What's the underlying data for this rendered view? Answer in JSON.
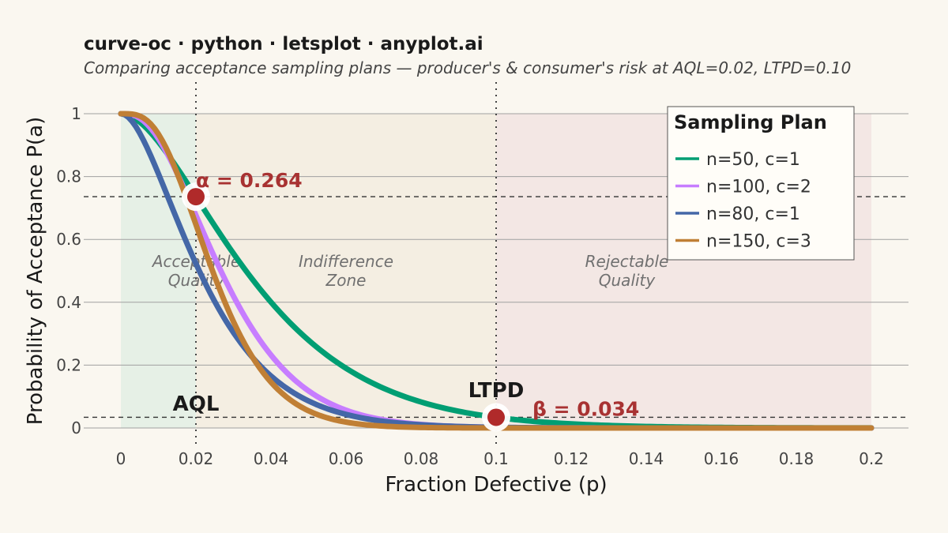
{
  "title": "curve-oc · python · letsplot · anyplot.ai",
  "subtitle": "Comparing acceptance sampling plans — producer's & consumer's risk at AQL=0.02, LTPD=0.10",
  "chart_data": {
    "type": "line",
    "xlabel": "Fraction Defective (p)",
    "ylabel": "Probability of Acceptance P(a)",
    "xlim": [
      0,
      0.2
    ],
    "ylim": [
      0,
      1
    ],
    "x_ticks": [
      "0",
      "0.02",
      "0.04",
      "0.06",
      "0.08",
      "0.1",
      "0.12",
      "0.14",
      "0.16",
      "0.18",
      "0.2"
    ],
    "y_ticks": [
      "0",
      "0.2",
      "0.4",
      "0.6",
      "0.8",
      "1"
    ],
    "grid": "horizontal",
    "legend": {
      "title": "Sampling Plan",
      "placement": "top-right"
    },
    "series": [
      {
        "name": "n=50, c=1",
        "n": 50,
        "c": 1,
        "color": "#009e73"
      },
      {
        "name": "n=100, c=2",
        "n": 100,
        "c": 2,
        "color": "#c77dff"
      },
      {
        "name": "n=80, c=1",
        "n": 80,
        "c": 1,
        "color": "#4467a7"
      },
      {
        "name": "n=150, c=3",
        "n": 150,
        "c": 3,
        "color": "#c07f35"
      }
    ],
    "zones": [
      {
        "from": 0,
        "to": 0.02,
        "line1": "Acceptable",
        "line2": "Quality",
        "color": "#e6f0e6"
      },
      {
        "from": 0.02,
        "to": 0.1,
        "line1": "Indifference",
        "line2": "Zone",
        "color": "#f4eee2"
      },
      {
        "from": 0.1,
        "to": 0.2,
        "line1": "Rejectable",
        "line2": "Quality",
        "color": "#f3e7e4"
      }
    ],
    "reference": {
      "aql": {
        "x": 0.02,
        "label": "AQL"
      },
      "ltpd": {
        "x": 0.1,
        "label": "LTPD"
      },
      "alpha": {
        "value": 0.264,
        "label": "α = 0.264",
        "pa": 0.736
      },
      "beta": {
        "value": 0.034,
        "label": "β = 0.034",
        "pa": 0.034
      }
    },
    "marker_color": "#b02a2a"
  }
}
